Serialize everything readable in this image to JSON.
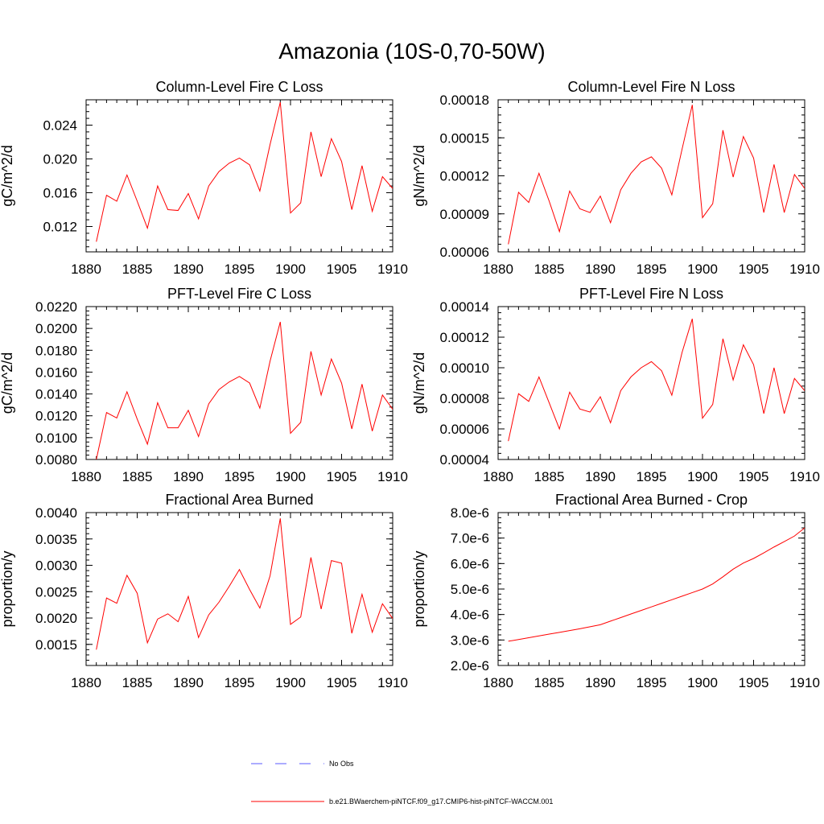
{
  "figure": {
    "title": "Amazonia (10S-0,70-50W)",
    "colors": {
      "model": "#ff0000",
      "obs": "#5a5aff"
    }
  },
  "legend": {
    "obs_label": "No Obs",
    "model_label": "b.e21.BWaerchem-piNTCF.f09_g17.CMIP6-hist-piNTCF-WACCM.001"
  },
  "chart_data": [
    {
      "type": "line",
      "title": "Column-Level Fire C Loss",
      "ylabel": "gC/m^2/d",
      "xlim": [
        1880,
        1910
      ],
      "ylim": [
        0.009,
        0.027
      ],
      "x_ticks": [
        1880,
        1885,
        1890,
        1895,
        1900,
        1905,
        1910
      ],
      "x_tick_labels": [
        "1880",
        "1885",
        "1890",
        "1895",
        "1900",
        "1905",
        "1910"
      ],
      "y_ticks": [
        0.012,
        0.016,
        0.02,
        0.024
      ],
      "y_tick_labels": [
        "0.012",
        "0.016",
        "0.020",
        "0.024"
      ],
      "series": [
        {
          "x": [
            1881,
            1882,
            1883,
            1884,
            1885,
            1886,
            1887,
            1888,
            1889,
            1890,
            1891,
            1892,
            1893,
            1894,
            1895,
            1896,
            1897,
            1898,
            1899,
            1900,
            1901,
            1902,
            1903,
            1904,
            1905,
            1906,
            1907,
            1908,
            1909,
            1910
          ],
          "y": [
            0.0102,
            0.0157,
            0.015,
            0.0181,
            0.015,
            0.0118,
            0.0168,
            0.014,
            0.0139,
            0.0159,
            0.0129,
            0.0168,
            0.0185,
            0.0195,
            0.0201,
            0.0193,
            0.0162,
            0.0217,
            0.0267,
            0.0136,
            0.0148,
            0.0232,
            0.0179,
            0.0224,
            0.0197,
            0.014,
            0.0192,
            0.0138,
            0.0179,
            0.0165
          ]
        }
      ]
    },
    {
      "type": "line",
      "title": "Column-Level Fire N Loss",
      "ylabel": "gN/m^2/d",
      "xlim": [
        1880,
        1910
      ],
      "ylim": [
        6e-05,
        0.00018
      ],
      "x_ticks": [
        1880,
        1885,
        1890,
        1895,
        1900,
        1905,
        1910
      ],
      "x_tick_labels": [
        "1880",
        "1885",
        "1890",
        "1895",
        "1900",
        "1905",
        "1910"
      ],
      "y_ticks": [
        6e-05,
        9e-05,
        0.00012,
        0.00015,
        0.00018
      ],
      "y_tick_labels": [
        "0.00006",
        "0.00009",
        "0.00012",
        "0.00015",
        "0.00018"
      ],
      "series": [
        {
          "x": [
            1881,
            1882,
            1883,
            1884,
            1885,
            1886,
            1887,
            1888,
            1889,
            1890,
            1891,
            1892,
            1893,
            1894,
            1895,
            1896,
            1897,
            1898,
            1899,
            1900,
            1901,
            1902,
            1903,
            1904,
            1905,
            1906,
            1907,
            1908,
            1909,
            1910
          ],
          "y": [
            6.6e-05,
            0.000107,
            9.9e-05,
            0.000122,
            0.0001,
            7.6e-05,
            0.000108,
            9.4e-05,
            9.1e-05,
            0.000104,
            8.3e-05,
            0.000109,
            0.000122,
            0.000131,
            0.000135,
            0.000126,
            0.000105,
            0.000141,
            0.000176,
            8.7e-05,
            9.8e-05,
            0.000156,
            0.000119,
            0.000151,
            0.000134,
            9.1e-05,
            0.000129,
            9.1e-05,
            0.000121,
            0.00011
          ]
        }
      ]
    },
    {
      "type": "line",
      "title": "PFT-Level Fire C Loss",
      "ylabel": "gC/m^2/d",
      "xlim": [
        1880,
        1910
      ],
      "ylim": [
        0.008,
        0.022
      ],
      "x_ticks": [
        1880,
        1885,
        1890,
        1895,
        1900,
        1905,
        1910
      ],
      "x_tick_labels": [
        "1880",
        "1885",
        "1890",
        "1895",
        "1900",
        "1905",
        "1910"
      ],
      "y_ticks": [
        0.008,
        0.01,
        0.012,
        0.014,
        0.016,
        0.018,
        0.02,
        0.022
      ],
      "y_tick_labels": [
        "0.0080",
        "0.0100",
        "0.0120",
        "0.0140",
        "0.0160",
        "0.0180",
        "0.0200",
        "0.0220"
      ],
      "series": [
        {
          "x": [
            1881,
            1882,
            1883,
            1884,
            1885,
            1886,
            1887,
            1888,
            1889,
            1890,
            1891,
            1892,
            1893,
            1894,
            1895,
            1896,
            1897,
            1898,
            1899,
            1900,
            1901,
            1902,
            1903,
            1904,
            1905,
            1906,
            1907,
            1908,
            1909,
            1910
          ],
          "y": [
            0.008,
            0.0123,
            0.0118,
            0.0142,
            0.0117,
            0.0094,
            0.0132,
            0.0109,
            0.0109,
            0.0125,
            0.0101,
            0.0131,
            0.0144,
            0.0151,
            0.0156,
            0.015,
            0.0127,
            0.017,
            0.0206,
            0.0104,
            0.0114,
            0.0179,
            0.0139,
            0.0172,
            0.015,
            0.0108,
            0.0149,
            0.0106,
            0.0139,
            0.0126
          ]
        }
      ]
    },
    {
      "type": "line",
      "title": "PFT-Level Fire N Loss",
      "ylabel": "gN/m^2/d",
      "xlim": [
        1880,
        1910
      ],
      "ylim": [
        4e-05,
        0.00014
      ],
      "x_ticks": [
        1880,
        1885,
        1890,
        1895,
        1900,
        1905,
        1910
      ],
      "x_tick_labels": [
        "1880",
        "1885",
        "1890",
        "1895",
        "1900",
        "1905",
        "1910"
      ],
      "y_ticks": [
        4e-05,
        6e-05,
        8e-05,
        0.0001,
        0.00012,
        0.00014
      ],
      "y_tick_labels": [
        "0.00004",
        "0.00006",
        "0.00008",
        "0.00010",
        "0.00012",
        "0.00014"
      ],
      "series": [
        {
          "x": [
            1881,
            1882,
            1883,
            1884,
            1885,
            1886,
            1887,
            1888,
            1889,
            1890,
            1891,
            1892,
            1893,
            1894,
            1895,
            1896,
            1897,
            1898,
            1899,
            1900,
            1901,
            1902,
            1903,
            1904,
            1905,
            1906,
            1907,
            1908,
            1909,
            1910
          ],
          "y": [
            5.2e-05,
            8.3e-05,
            7.8e-05,
            9.4e-05,
            7.7e-05,
            6e-05,
            8.4e-05,
            7.3e-05,
            7.1e-05,
            8.1e-05,
            6.4e-05,
            8.5e-05,
            9.4e-05,
            0.0001,
            0.000104,
            9.8e-05,
            8.2e-05,
            0.00011,
            0.000132,
            6.7e-05,
            7.6e-05,
            0.000119,
            9.2e-05,
            0.000115,
            0.000102,
            7e-05,
            0.0001,
            7e-05,
            9.3e-05,
            8.5e-05
          ]
        }
      ]
    },
    {
      "type": "line",
      "title": "Fractional Area Burned",
      "ylabel": "proportion/y",
      "xlim": [
        1880,
        1910
      ],
      "ylim": [
        0.0011,
        0.004
      ],
      "x_ticks": [
        1880,
        1885,
        1890,
        1895,
        1900,
        1905,
        1910
      ],
      "x_tick_labels": [
        "1880",
        "1885",
        "1890",
        "1895",
        "1900",
        "1905",
        "1910"
      ],
      "y_ticks": [
        0.0015,
        0.002,
        0.0025,
        0.003,
        0.0035,
        0.004
      ],
      "y_tick_labels": [
        "0.0015",
        "0.0020",
        "0.0025",
        "0.0030",
        "0.0035",
        "0.0040"
      ],
      "series": [
        {
          "x": [
            1881,
            1882,
            1883,
            1884,
            1885,
            1886,
            1887,
            1888,
            1889,
            1890,
            1891,
            1892,
            1893,
            1894,
            1895,
            1896,
            1897,
            1898,
            1899,
            1900,
            1901,
            1902,
            1903,
            1904,
            1905,
            1906,
            1907,
            1908,
            1909,
            1910
          ],
          "y": [
            0.0014,
            0.00238,
            0.00228,
            0.00281,
            0.00247,
            0.00153,
            0.00198,
            0.00208,
            0.00193,
            0.00241,
            0.00163,
            0.00206,
            0.0023,
            0.0026,
            0.00292,
            0.00254,
            0.00219,
            0.0028,
            0.00389,
            0.00188,
            0.00202,
            0.00315,
            0.00217,
            0.00309,
            0.00304,
            0.00171,
            0.00245,
            0.00173,
            0.00227,
            0.00199
          ]
        }
      ]
    },
    {
      "type": "line",
      "title": "Fractional Area Burned - Crop",
      "ylabel": "proportion/y",
      "xlim": [
        1880,
        1910
      ],
      "ylim": [
        2e-06,
        8e-06
      ],
      "x_ticks": [
        1880,
        1885,
        1890,
        1895,
        1900,
        1905,
        1910
      ],
      "x_tick_labels": [
        "1880",
        "1885",
        "1890",
        "1895",
        "1900",
        "1905",
        "1910"
      ],
      "y_ticks": [
        2e-06,
        3e-06,
        4e-06,
        5e-06,
        6e-06,
        7e-06,
        8e-06
      ],
      "y_tick_labels": [
        "2.0e-6",
        "3.0e-6",
        "4.0e-6",
        "5.0e-6",
        "6.0e-6",
        "7.0e-6",
        "8.0e-6"
      ],
      "series": [
        {
          "x": [
            1881,
            1882,
            1883,
            1884,
            1885,
            1886,
            1887,
            1888,
            1889,
            1890,
            1891,
            1892,
            1893,
            1894,
            1895,
            1896,
            1897,
            1898,
            1899,
            1900,
            1901,
            1902,
            1903,
            1904,
            1905,
            1906,
            1907,
            1908,
            1909,
            1910
          ],
          "y": [
            2.95e-06,
            3.02e-06,
            3.09e-06,
            3.16e-06,
            3.23e-06,
            3.3e-06,
            3.37e-06,
            3.44e-06,
            3.52e-06,
            3.6e-06,
            3.74e-06,
            3.88e-06,
            4.02e-06,
            4.16e-06,
            4.3e-06,
            4.44e-06,
            4.58e-06,
            4.72e-06,
            4.86e-06,
            5e-06,
            5.2e-06,
            5.48e-06,
            5.78e-06,
            6.02e-06,
            6.2e-06,
            6.42e-06,
            6.65e-06,
            6.86e-06,
            7.08e-06,
            7.4e-06
          ]
        }
      ]
    }
  ]
}
